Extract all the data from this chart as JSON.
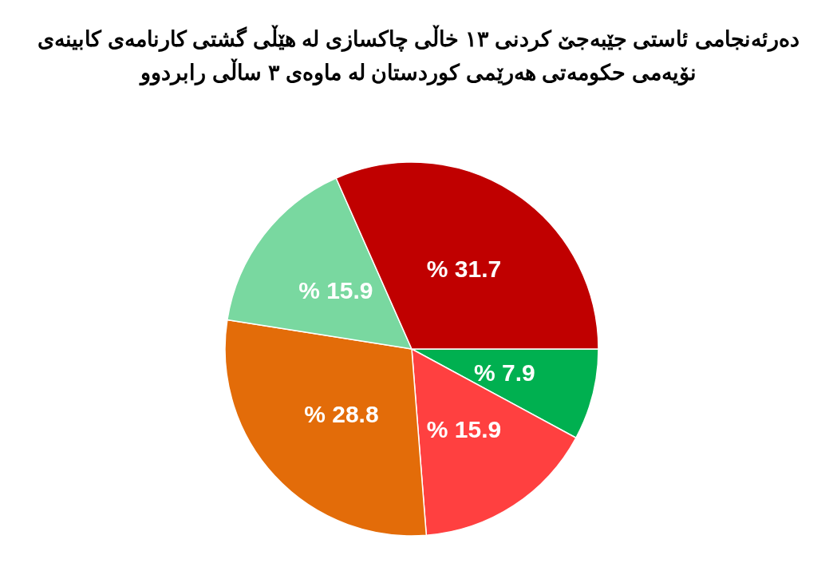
{
  "chart_data": {
    "type": "pie",
    "title": "دەرئەنجامی ئاستی جێبەجێ کردنی ١٣ خاڵی چاکسازی لە هێڵی گشتی کارنامەی کابینەی نۆیەمی حکومەتی هەرێمی کوردستان لە ماوەی ٣ ساڵی رابردوو",
    "categories": [
      null,
      null,
      null,
      null,
      null
    ],
    "values": [
      7.9,
      15.9,
      28.8,
      15.9,
      31.7
    ],
    "value_labels": [
      "% 7.9",
      "% 15.9",
      "% 28.8",
      "% 15.9",
      "% 31.7"
    ],
    "colors": [
      "#00b050",
      "#ff4040",
      "#e36c09",
      "#79d8a0",
      "#c00000"
    ]
  }
}
